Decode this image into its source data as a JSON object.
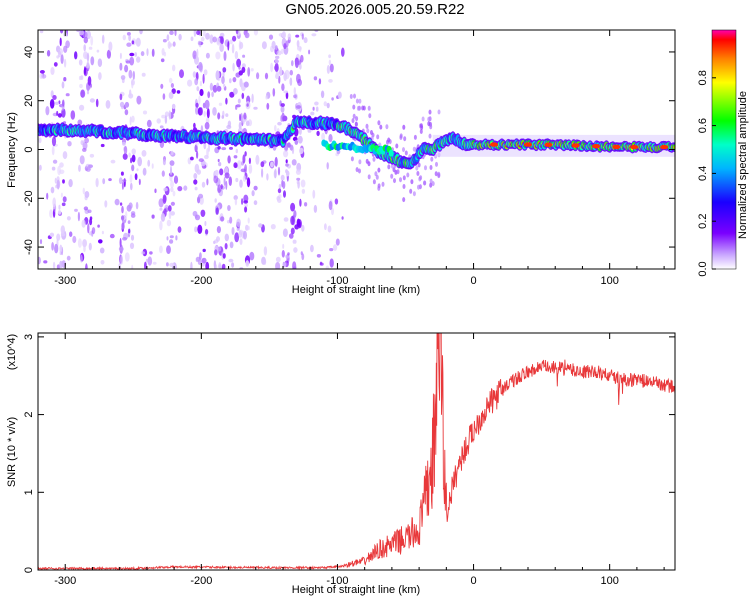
{
  "title": "GN05.2026.005.20.59.R22",
  "chart_data": [
    {
      "type": "heatmap",
      "xlabel": "Height of straight line (km)",
      "ylabel": "Frequency (Hz)",
      "xlim": [
        -320,
        148
      ],
      "ylim": [
        -49,
        49
      ],
      "xticks": [
        -300,
        -200,
        -100,
        0,
        100
      ],
      "yticks": [
        -40,
        -20,
        0,
        20,
        40
      ],
      "colorbar": {
        "label": "Normalized spectral amplitude",
        "ticks": [
          0.0,
          0.2,
          0.4,
          0.6,
          0.8
        ],
        "range": [
          0,
          1
        ]
      },
      "ridge": {
        "x": [
          -320,
          -300,
          -280,
          -260,
          -240,
          -220,
          -200,
          -180,
          -160,
          -140,
          -130,
          -115,
          -100,
          -90,
          -80,
          -70,
          -60,
          -50,
          -45,
          -40,
          -35,
          -30,
          -25,
          -20,
          -15,
          -10,
          -5,
          0,
          20,
          50,
          80,
          110,
          148
        ],
        "y": [
          8,
          8,
          7.5,
          7,
          6,
          5.5,
          5,
          4.5,
          4,
          3.5,
          11,
          11,
          10,
          8,
          4,
          -1,
          -3,
          -6,
          -5,
          -2,
          1,
          0,
          2,
          4,
          5,
          3,
          2,
          2,
          2,
          2,
          1.5,
          1,
          1
        ]
      },
      "noise_region_x": [
        -320,
        -95
      ]
    },
    {
      "type": "line",
      "xlabel": "Height of straight line (km)",
      "ylabel": "SNR (10 * v/v)",
      "y_multiplier": "(x10^4)",
      "xlim": [
        -320,
        148
      ],
      "ylim": [
        0,
        3.05
      ],
      "xticks": [
        -300,
        -200,
        -100,
        0,
        100
      ],
      "yticks": [
        0,
        1,
        2,
        3
      ],
      "color": "#e8383a",
      "series": [
        {
          "x": [
            -320,
            -250,
            -220,
            -150,
            -110,
            -95,
            -80,
            -70,
            -60,
            -50,
            -40,
            -35,
            -30,
            -26,
            -24,
            -22,
            -20,
            -15,
            -10,
            -5,
            0,
            10,
            20,
            30,
            40,
            50,
            60,
            70,
            80,
            90,
            100,
            110,
            120,
            130,
            148
          ],
          "y": [
            0.02,
            0.02,
            0.04,
            0.03,
            0.03,
            0.05,
            0.1,
            0.22,
            0.28,
            0.35,
            0.45,
            0.8,
            1.2,
            2.4,
            2.8,
            1.2,
            0.7,
            1.1,
            1.4,
            1.6,
            1.8,
            2.1,
            2.3,
            2.45,
            2.55,
            2.62,
            2.6,
            2.58,
            2.55,
            2.55,
            2.5,
            2.45,
            2.45,
            2.42,
            2.35
          ]
        }
      ]
    }
  ]
}
